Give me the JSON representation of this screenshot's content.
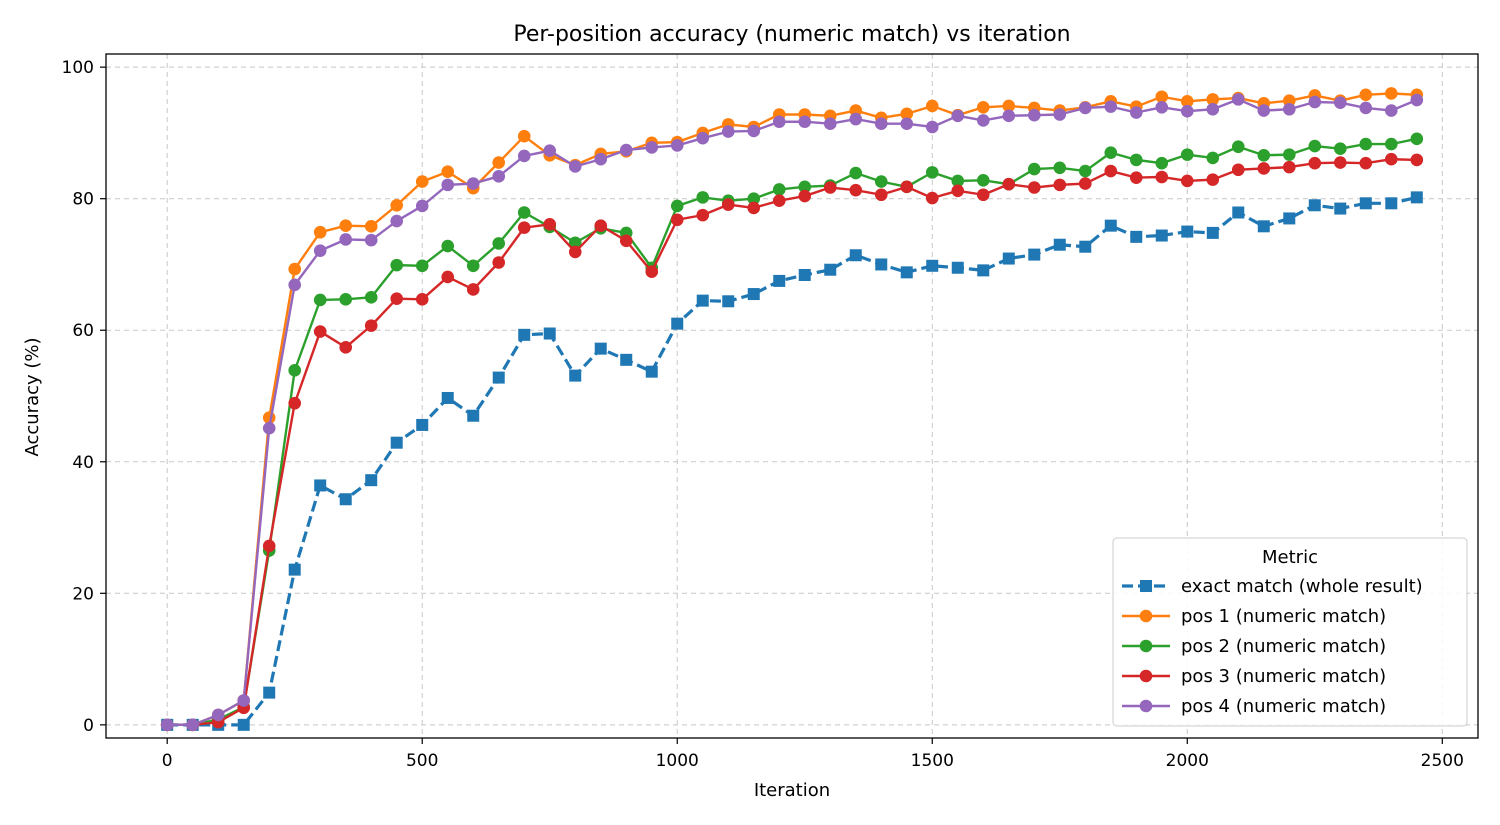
{
  "chart_data": {
    "type": "line",
    "title": "Per-position accuracy (numeric match) vs iteration",
    "xlabel": "Iteration",
    "ylabel": "Accuracy (%)",
    "xlim": [
      -120,
      2570
    ],
    "ylim": [
      -2,
      102
    ],
    "xticks": [
      0,
      500,
      1000,
      1500,
      2000,
      2500
    ],
    "yticks": [
      0,
      20,
      40,
      60,
      80,
      100
    ],
    "grid": true,
    "legend": {
      "title": "Metric",
      "placement": "lower-right"
    },
    "x": [
      0,
      50,
      100,
      150,
      200,
      250,
      300,
      350,
      400,
      450,
      500,
      550,
      600,
      650,
      700,
      750,
      800,
      850,
      900,
      950,
      1000,
      1050,
      1100,
      1150,
      1200,
      1250,
      1300,
      1350,
      1400,
      1450,
      1500,
      1550,
      1600,
      1650,
      1700,
      1750,
      1800,
      1850,
      1900,
      1950,
      2000,
      2050,
      2100,
      2150,
      2200,
      2250,
      2300,
      2350,
      2400,
      2450
    ],
    "series": [
      {
        "name": "exact match (whole result)",
        "color": "#1f77b4",
        "marker": "square",
        "dashed": true,
        "values": [
          0,
          0,
          0,
          0,
          4.9,
          23.6,
          36.4,
          34.3,
          37.2,
          42.9,
          45.6,
          49.7,
          47.0,
          52.8,
          59.3,
          59.5,
          53.1,
          57.2,
          55.5,
          53.7,
          61.0,
          64.5,
          64.4,
          65.5,
          67.5,
          68.4,
          69.2,
          71.4,
          70.0,
          68.8,
          69.8,
          69.5,
          69.1,
          70.9,
          71.5,
          73.0,
          72.7,
          75.9,
          74.2,
          74.4,
          75.0,
          74.8,
          77.9,
          75.8,
          77.0,
          79.0,
          78.5,
          79.3,
          79.3,
          80.2
        ]
      },
      {
        "name": "pos 1 (numeric match)",
        "color": "#ff7f0e",
        "marker": "circle",
        "dashed": false,
        "values": [
          0,
          0,
          1.5,
          3.7,
          46.7,
          69.3,
          74.9,
          75.9,
          75.8,
          79.0,
          82.6,
          84.1,
          81.6,
          85.5,
          89.5,
          86.6,
          85.1,
          86.8,
          87.2,
          88.5,
          88.6,
          90.0,
          91.3,
          90.9,
          92.8,
          92.8,
          92.6,
          93.4,
          92.3,
          92.9,
          94.1,
          92.7,
          93.9,
          94.1,
          93.8,
          93.4,
          93.9,
          94.8,
          94.0,
          95.5,
          94.8,
          95.1,
          95.3,
          94.5,
          94.9,
          95.7,
          94.9,
          95.8,
          96.0,
          95.8
        ]
      },
      {
        "name": "pos 2 (numeric match)",
        "color": "#2ca02c",
        "marker": "circle",
        "dashed": false,
        "values": [
          0,
          0,
          0.8,
          2.7,
          26.5,
          53.9,
          64.6,
          64.7,
          65.0,
          69.9,
          69.8,
          72.8,
          69.8,
          73.2,
          77.9,
          75.7,
          73.3,
          75.5,
          74.8,
          69.5,
          78.9,
          80.2,
          79.7,
          80.0,
          81.4,
          81.8,
          82.0,
          83.9,
          82.6,
          81.8,
          84.0,
          82.7,
          82.8,
          82.2,
          84.5,
          84.7,
          84.2,
          87.0,
          85.9,
          85.4,
          86.7,
          86.2,
          87.9,
          86.6,
          86.7,
          88.0,
          87.6,
          88.3,
          88.3,
          89.1
        ]
      },
      {
        "name": "pos 3 (numeric match)",
        "color": "#d62728",
        "marker": "circle",
        "dashed": false,
        "values": [
          0,
          0,
          0.4,
          2.6,
          27.2,
          48.9,
          59.8,
          57.4,
          60.7,
          64.8,
          64.7,
          68.1,
          66.2,
          70.3,
          75.6,
          76.1,
          71.9,
          75.9,
          73.6,
          68.9,
          76.8,
          77.5,
          79.1,
          78.6,
          79.7,
          80.4,
          81.7,
          81.3,
          80.6,
          81.8,
          80.1,
          81.2,
          80.6,
          82.2,
          81.7,
          82.1,
          82.3,
          84.2,
          83.2,
          83.3,
          82.7,
          82.9,
          84.4,
          84.6,
          84.8,
          85.4,
          85.5,
          85.4,
          86.0,
          85.9
        ]
      },
      {
        "name": "pos 4 (numeric match)",
        "color": "#9467bd",
        "marker": "circle",
        "dashed": false,
        "values": [
          0,
          0,
          1.5,
          3.7,
          45.1,
          66.9,
          72.1,
          73.8,
          73.7,
          76.6,
          78.9,
          82.1,
          82.3,
          83.4,
          86.5,
          87.3,
          84.9,
          86.0,
          87.4,
          87.8,
          88.1,
          89.2,
          90.2,
          90.3,
          91.7,
          91.7,
          91.4,
          92.1,
          91.4,
          91.4,
          90.9,
          92.6,
          91.9,
          92.6,
          92.7,
          92.8,
          93.8,
          94.0,
          93.1,
          93.9,
          93.3,
          93.6,
          95.1,
          93.4,
          93.6,
          94.7,
          94.6,
          93.8,
          93.4,
          95.0
        ]
      }
    ]
  }
}
